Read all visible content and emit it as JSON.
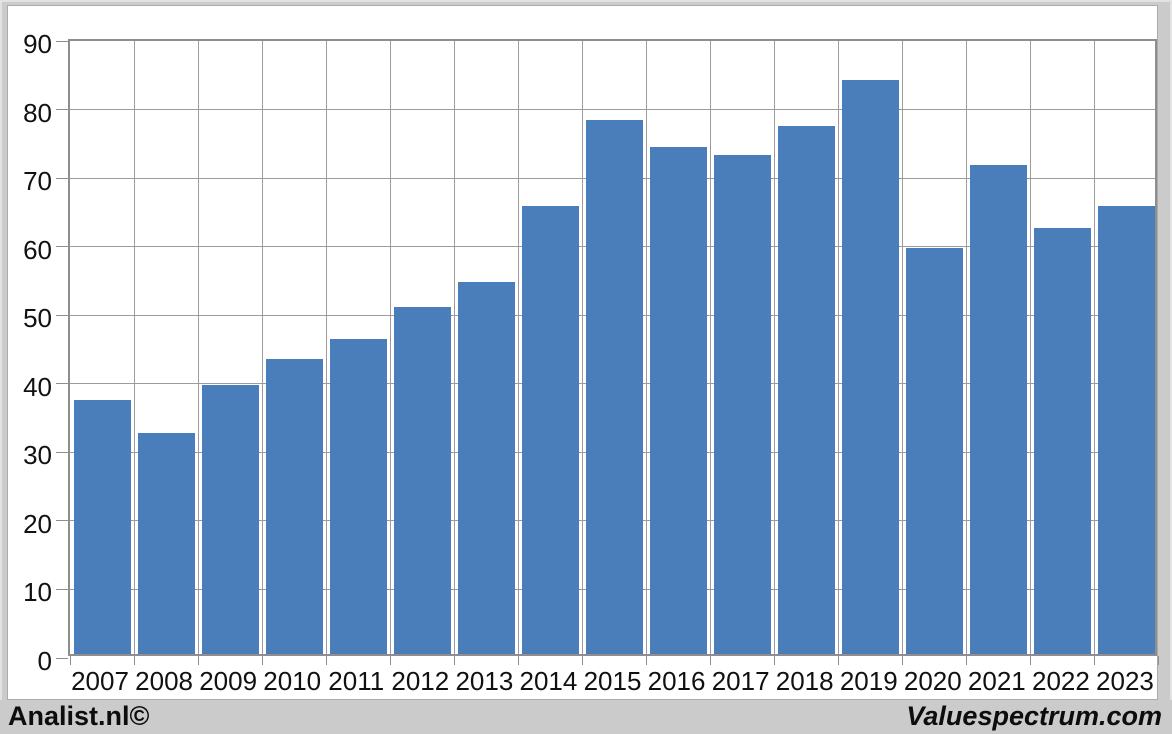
{
  "chart_data": {
    "type": "bar",
    "title": "",
    "xlabel": "",
    "ylabel": "",
    "categories": [
      "2007",
      "2008",
      "2009",
      "2010",
      "2011",
      "2012",
      "2013",
      "2014",
      "2015",
      "2016",
      "2017",
      "2018",
      "2019",
      "2020",
      "2021",
      "2022",
      "2023"
    ],
    "values": [
      37.0,
      32.2,
      39.3,
      43.0,
      46.0,
      50.6,
      54.3,
      65.3,
      77.9,
      74.0,
      72.8,
      77.0,
      83.8,
      59.2,
      71.3,
      62.1,
      65.4
    ],
    "ylim": [
      0,
      90
    ],
    "ytick_step": 10,
    "ytick_labels": [
      "0",
      "10",
      "20",
      "30",
      "40",
      "50",
      "60",
      "70",
      "80",
      "90"
    ],
    "grid": "horizontal gridlines at every 10; vertical gridlines at category boundaries",
    "legend": "none",
    "bar_color": "#4a7eba",
    "gridline_color": "#9b9b9b",
    "axis_color": "#8e8e8e",
    "text_color": "#111111"
  },
  "footer": {
    "left_label": "Analist.nl©",
    "right_label": "Valuespectrum.com"
  }
}
